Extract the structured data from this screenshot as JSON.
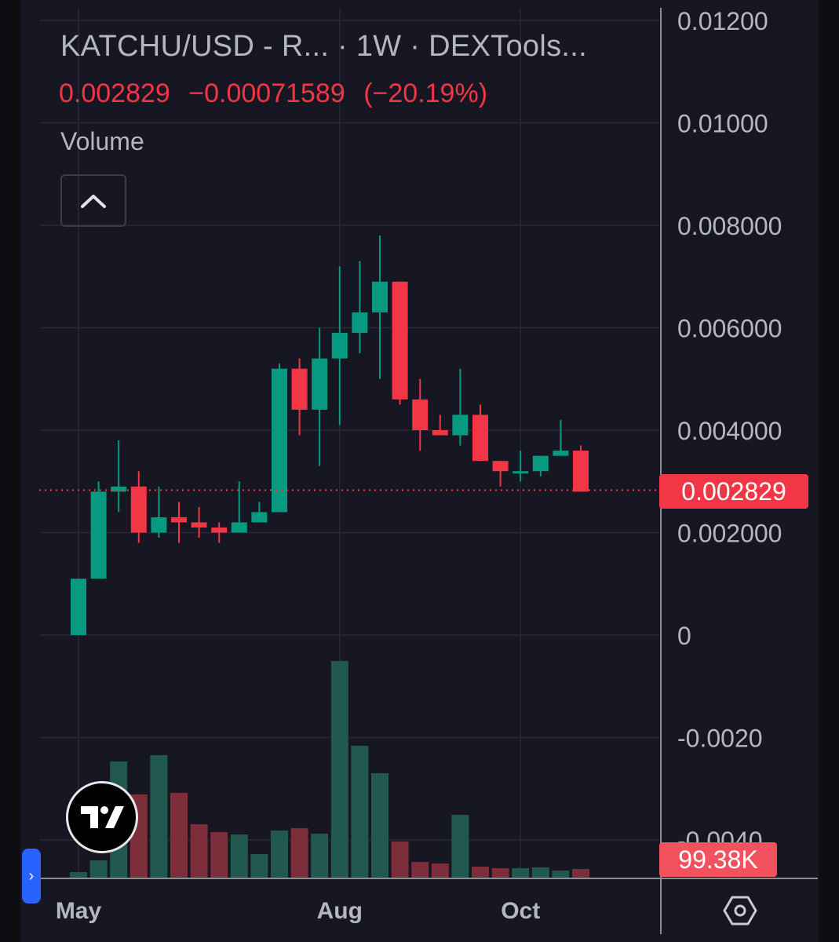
{
  "legend": {
    "title": "KATCHU/USD - R...   · 1W · DEXTools...",
    "last_price": "0.002829",
    "change_abs": "−0.00071589",
    "change_pct": "(−20.19%)",
    "volume_label": "Volume"
  },
  "price_tag": "0.002829",
  "volume_tag": "99.38K",
  "colors": {
    "up": "#089981",
    "down": "#f23645",
    "vol_up": "#22594f",
    "vol_down": "#7c2e3a",
    "background": "#161722",
    "grid": "#262834",
    "axis_text": "#b5b7c0"
  },
  "icons": {
    "collapse": "chevron-up-icon",
    "logo": "tradingview-logo-icon",
    "panel": "chevron-right-icon",
    "settings": "hexagon-gear-icon"
  },
  "chart_data": {
    "type": "candlestick",
    "interval": "1W",
    "y_axis_ticks": [
      "0.01200",
      "0.01000",
      "0.008000",
      "0.006000",
      "0.004000",
      "0.002000",
      "0",
      "-0.0020",
      "-0.0040"
    ],
    "y_tick_values": [
      0.012,
      0.01,
      0.008,
      0.006,
      0.004,
      0.002,
      0,
      -0.002,
      -0.004
    ],
    "x_axis_labels": [
      "May",
      "Aug",
      "Oct"
    ],
    "x_label_index": [
      0,
      13,
      22
    ],
    "last_price": 0.002829,
    "candles": [
      {
        "o": 0.0,
        "h": 0.0011,
        "l": 0.0,
        "c": 0.0011
      },
      {
        "o": 0.0011,
        "h": 0.003,
        "l": 0.0011,
        "c": 0.0028
      },
      {
        "o": 0.0028,
        "h": 0.0038,
        "l": 0.0024,
        "c": 0.0029
      },
      {
        "o": 0.0029,
        "h": 0.0032,
        "l": 0.0018,
        "c": 0.002
      },
      {
        "o": 0.002,
        "h": 0.0029,
        "l": 0.0019,
        "c": 0.0023
      },
      {
        "o": 0.0023,
        "h": 0.0026,
        "l": 0.0018,
        "c": 0.0022
      },
      {
        "o": 0.0022,
        "h": 0.0025,
        "l": 0.0019,
        "c": 0.0021
      },
      {
        "o": 0.0021,
        "h": 0.0022,
        "l": 0.0018,
        "c": 0.002
      },
      {
        "o": 0.002,
        "h": 0.003,
        "l": 0.002,
        "c": 0.0022
      },
      {
        "o": 0.0022,
        "h": 0.0026,
        "l": 0.0022,
        "c": 0.0024
      },
      {
        "o": 0.0024,
        "h": 0.0053,
        "l": 0.0024,
        "c": 0.0052
      },
      {
        "o": 0.0052,
        "h": 0.0054,
        "l": 0.0039,
        "c": 0.0044
      },
      {
        "o": 0.0044,
        "h": 0.006,
        "l": 0.0033,
        "c": 0.0054
      },
      {
        "o": 0.0054,
        "h": 0.0072,
        "l": 0.0041,
        "c": 0.0059
      },
      {
        "o": 0.0059,
        "h": 0.0073,
        "l": 0.0055,
        "c": 0.0063
      },
      {
        "o": 0.0063,
        "h": 0.0078,
        "l": 0.005,
        "c": 0.0069
      },
      {
        "o": 0.0069,
        "h": 0.0069,
        "l": 0.0045,
        "c": 0.0046
      },
      {
        "o": 0.0046,
        "h": 0.005,
        "l": 0.0036,
        "c": 0.004
      },
      {
        "o": 0.004,
        "h": 0.0043,
        "l": 0.0039,
        "c": 0.0039
      },
      {
        "o": 0.0039,
        "h": 0.0052,
        "l": 0.0037,
        "c": 0.0043
      },
      {
        "o": 0.0043,
        "h": 0.0045,
        "l": 0.0034,
        "c": 0.0034
      },
      {
        "o": 0.0034,
        "h": 0.0034,
        "l": 0.0029,
        "c": 0.0032
      },
      {
        "o": 0.0032,
        "h": 0.0036,
        "l": 0.003,
        "c": 0.0032
      },
      {
        "o": 0.0032,
        "h": 0.0035,
        "l": 0.0031,
        "c": 0.0035
      },
      {
        "o": 0.0035,
        "h": 0.0042,
        "l": 0.0035,
        "c": 0.0036
      },
      {
        "o": 0.0036,
        "h": 0.0037,
        "l": 0.0028,
        "c": 0.0028
      }
    ],
    "volume": [
      {
        "v": 7,
        "up": true
      },
      {
        "v": 22,
        "up": true
      },
      {
        "v": 148,
        "up": true
      },
      {
        "v": 106,
        "up": false
      },
      {
        "v": 156,
        "up": true
      },
      {
        "v": 108,
        "up": false
      },
      {
        "v": 68,
        "up": false
      },
      {
        "v": 58,
        "up": false
      },
      {
        "v": 55,
        "up": true
      },
      {
        "v": 30,
        "up": true
      },
      {
        "v": 60,
        "up": true
      },
      {
        "v": 63,
        "up": false
      },
      {
        "v": 56,
        "up": true
      },
      {
        "v": 276,
        "up": true
      },
      {
        "v": 168,
        "up": true
      },
      {
        "v": 133,
        "up": true
      },
      {
        "v": 46,
        "up": false
      },
      {
        "v": 20,
        "up": false
      },
      {
        "v": 18,
        "up": false
      },
      {
        "v": 80,
        "up": true
      },
      {
        "v": 14,
        "up": false
      },
      {
        "v": 12,
        "up": false
      },
      {
        "v": 12,
        "up": true
      },
      {
        "v": 13,
        "up": true
      },
      {
        "v": 9,
        "up": true
      },
      {
        "v": 11,
        "up": false
      }
    ],
    "grid": true
  }
}
